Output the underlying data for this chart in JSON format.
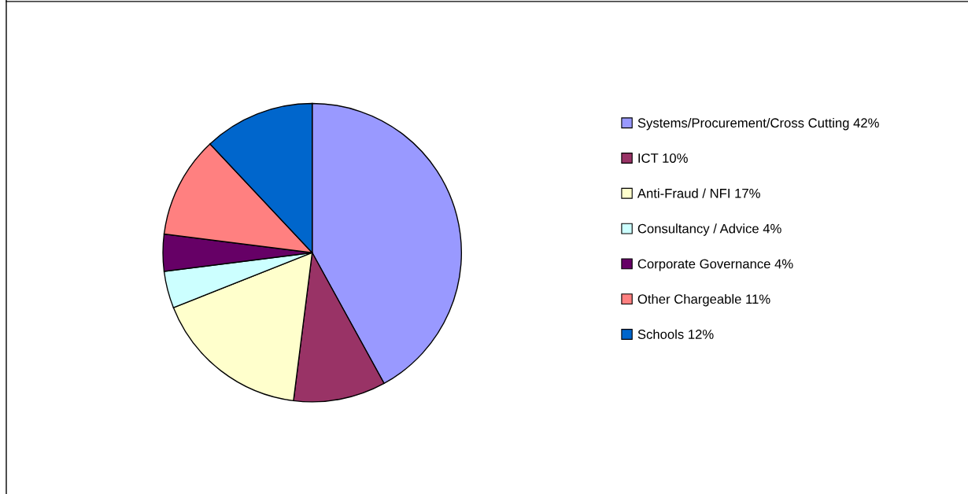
{
  "chart_data": {
    "type": "pie",
    "categories": [
      "Systems/Procurement/Cross Cutting 42%",
      "ICT 10%",
      "Anti-Fraud / NFI 17%",
      "Consultancy / Advice 4%",
      "Corporate Governance 4%",
      "Other Chargeable 11%",
      "Schools 12%"
    ],
    "values": [
      42,
      10,
      17,
      4,
      4,
      11,
      12
    ],
    "colors": [
      "#9999ff",
      "#993366",
      "#ffffcc",
      "#ccffff",
      "#660066",
      "#ff8080",
      "#0066cc"
    ],
    "legend": "right"
  }
}
